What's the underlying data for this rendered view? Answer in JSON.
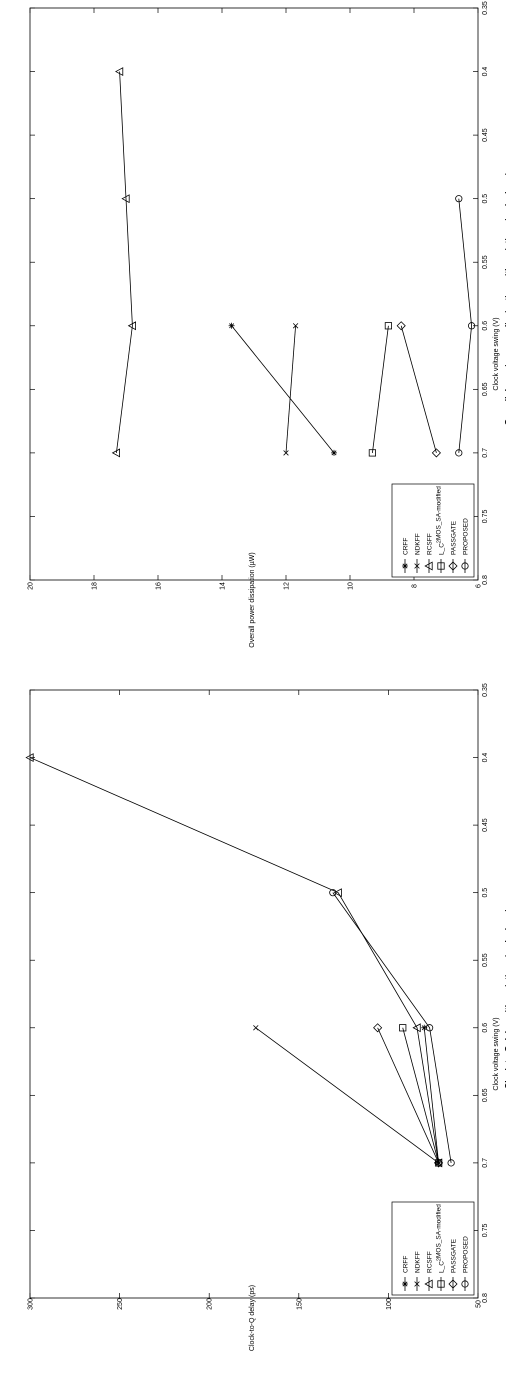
{
  "chart_data": [
    {
      "type": "line",
      "title": "Overall dynamic power dissipation with variations in clock swing",
      "xlabel": "Clock voltage swing (V)",
      "ylabel": "Overall power dissipation (µW)",
      "xlim": [
        0.35,
        0.8
      ],
      "ylim": [
        6,
        20
      ],
      "xticks": [
        "0.35",
        "0.4",
        "0.45",
        "0.5",
        "0.55",
        "0.6",
        "0.65",
        "0.7",
        "0.75",
        "0.8"
      ],
      "yticks": [
        "6",
        "8",
        "10",
        "12",
        "14",
        "16",
        "18",
        "20"
      ],
      "grid": false,
      "legend_position": "top-right",
      "series": [
        {
          "name": "PROPOSED",
          "marker": "circle",
          "x": [
            0.5,
            0.6,
            0.7
          ],
          "y": [
            6.6,
            6.2,
            6.6
          ]
        },
        {
          "name": "PASSGATE",
          "marker": "diamond",
          "x": [
            0.6,
            0.7
          ],
          "y": [
            8.4,
            7.3
          ]
        },
        {
          "name": "L_C²MOS_SA-modified",
          "marker": "square",
          "x": [
            0.6,
            0.7
          ],
          "y": [
            8.8,
            9.3
          ]
        },
        {
          "name": "RCSFF",
          "marker": "triangle",
          "x": [
            0.4,
            0.5,
            0.6,
            0.7
          ],
          "y": [
            17.2,
            17.0,
            16.8,
            17.3
          ]
        },
        {
          "name": "NDKFF",
          "marker": "x",
          "x": [
            0.6,
            0.7
          ],
          "y": [
            11.7,
            12.0
          ]
        },
        {
          "name": "CRFF",
          "marker": "asterisk",
          "x": [
            0.6,
            0.7
          ],
          "y": [
            13.7,
            10.5
          ]
        }
      ]
    },
    {
      "type": "line",
      "title": "Clock-to-Q delay with variations in clock swing",
      "xlabel": "Clock voltage swing (V)",
      "ylabel": "Clock-to-Q delay (ps)",
      "xlim": [
        0.35,
        0.8
      ],
      "ylim": [
        50,
        300
      ],
      "xticks": [
        "0.35",
        "0.4",
        "0.45",
        "0.5",
        "0.55",
        "0.6",
        "0.65",
        "0.7",
        "0.75",
        "0.8"
      ],
      "yticks": [
        "50",
        "100",
        "150",
        "200",
        "250",
        "300"
      ],
      "grid": false,
      "legend_position": "top-right",
      "series": [
        {
          "name": "PROPOSED",
          "marker": "circle",
          "x": [
            0.5,
            0.6,
            0.7
          ],
          "y": [
            131,
            77,
            65
          ]
        },
        {
          "name": "PASSGATE",
          "marker": "diamond",
          "x": [
            0.6,
            0.7
          ],
          "y": [
            106,
            72
          ]
        },
        {
          "name": "L_C²MOS_SA-modified",
          "marker": "square",
          "x": [
            0.6,
            0.7
          ],
          "y": [
            92,
            72
          ]
        },
        {
          "name": "RCSFF",
          "marker": "triangle",
          "x": [
            0.4,
            0.5,
            0.6,
            0.7
          ],
          "y": [
            300,
            128,
            84,
            72
          ]
        },
        {
          "name": "NDKFF",
          "marker": "x",
          "x": [
            0.6,
            0.7
          ],
          "y": [
            174,
            72
          ]
        },
        {
          "name": "CRFF",
          "marker": "asterisk",
          "x": [
            0.6,
            0.7
          ],
          "y": [
            80,
            72
          ]
        }
      ]
    }
  ]
}
